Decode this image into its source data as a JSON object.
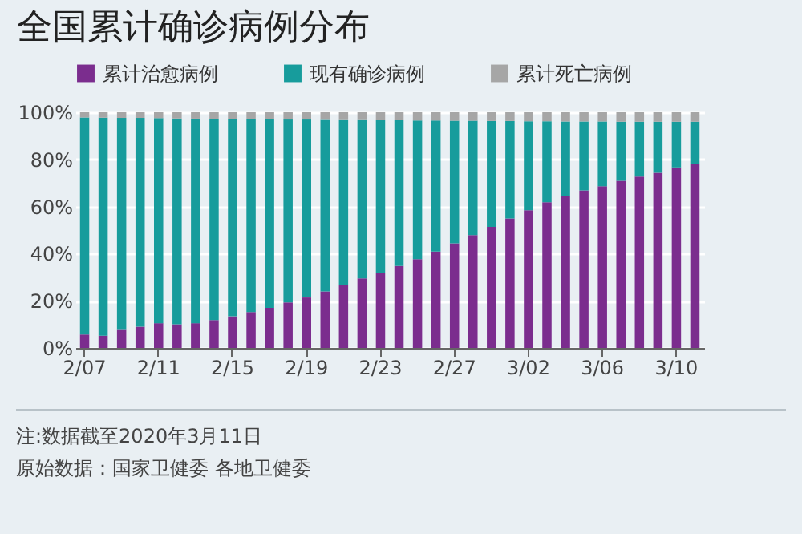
{
  "chart_data": {
    "type": "bar",
    "title": "全国累计确诊病例分布",
    "stacked": true,
    "categories": [
      "2/07",
      null,
      null,
      null,
      "2/11",
      null,
      null,
      null,
      "2/15",
      null,
      null,
      null,
      "2/19",
      null,
      null,
      null,
      "2/23",
      null,
      null,
      null,
      "2/27",
      null,
      null,
      null,
      "3/02",
      null,
      null,
      null,
      "3/06",
      null,
      null,
      null,
      "3/10",
      null
    ],
    "series": [
      {
        "name": "累计治愈病例",
        "color": "#7b2d8e",
        "values": [
          5.7,
          5.2,
          8,
          9,
          10.5,
          10,
          10.5,
          11.8,
          13.4,
          15.2,
          17,
          19.3,
          21.4,
          24,
          26.8,
          29.5,
          31.8,
          34.8,
          37.7,
          40.9,
          44.4,
          47.9,
          51.4,
          54.9,
          58.4,
          61.8,
          64.3,
          66.8,
          68.6,
          70.9,
          72.7,
          74.3,
          76.6,
          78
        ]
      },
      {
        "name": "现有确诊病例",
        "color": "#179c9c",
        "values": [
          92.1,
          92.5,
          89.6,
          88.6,
          87.0,
          87.4,
          86.8,
          85.4,
          83.7,
          81.9,
          80.0,
          77.6,
          75.5,
          72.8,
          69.9,
          67.2,
          64.8,
          61.8,
          58.8,
          55.6,
          52.0,
          48.5,
          44.9,
          41.4,
          37.8,
          34.4,
          31.8,
          29.3,
          27.5,
          25.1,
          23.3,
          21.7,
          19.4,
          18.0
        ]
      },
      {
        "name": "累计死亡病例",
        "color": "#a6a6a6",
        "values": [
          2.2,
          2.3,
          2.4,
          2.4,
          2.5,
          2.6,
          2.7,
          2.8,
          2.9,
          2.9,
          3.0,
          3.1,
          3.1,
          3.2,
          3.3,
          3.3,
          3.4,
          3.4,
          3.5,
          3.5,
          3.6,
          3.6,
          3.7,
          3.7,
          3.8,
          3.8,
          3.9,
          3.9,
          3.9,
          4.0,
          4.0,
          4.0,
          4.0,
          4.0
        ]
      }
    ],
    "ylim": [
      0,
      100
    ],
    "yticks": [
      {
        "value": 0,
        "label": "0%"
      },
      {
        "value": 20,
        "label": "20%"
      },
      {
        "value": 40,
        "label": "40%"
      },
      {
        "value": 60,
        "label": "60%"
      },
      {
        "value": 80,
        "label": "80%"
      },
      {
        "value": 100,
        "label": "100%"
      }
    ],
    "grid": "y",
    "legend": "top left",
    "annotations": [
      "注:数据截至2020年3月11日",
      "原始数据：国家卫健委 各地卫健委"
    ]
  }
}
